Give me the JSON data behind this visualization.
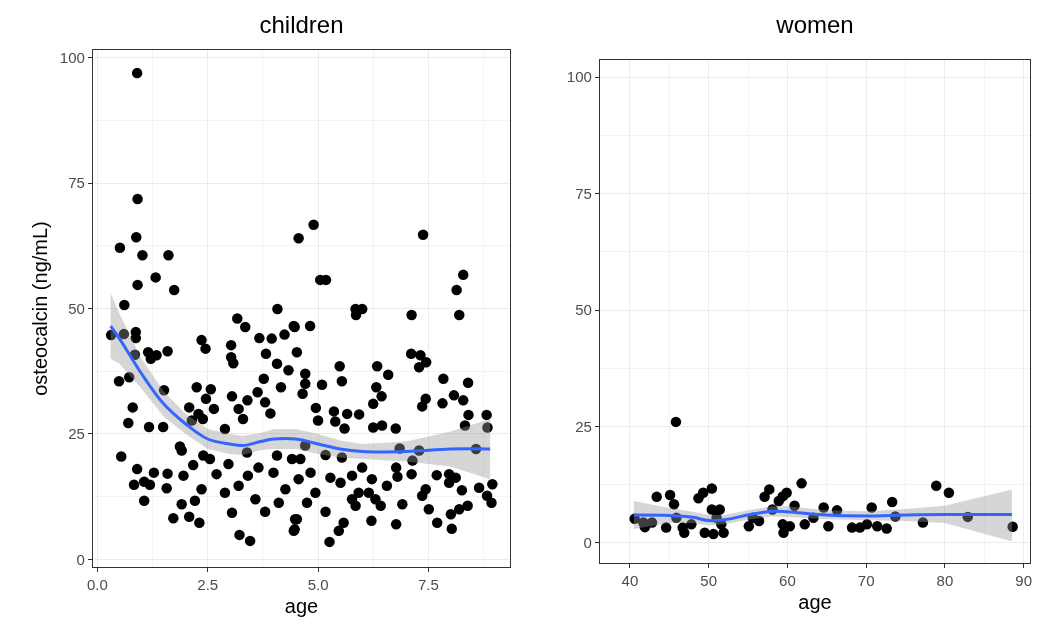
{
  "chart_data": [
    {
      "type": "scatter",
      "title": "children",
      "xlabel": "age",
      "ylabel": "osteocalcin (ng/mL)",
      "grid": true,
      "xlim": [
        -0.1,
        9.35
      ],
      "ylim": [
        -1.5,
        101.5
      ],
      "xticks": [
        {
          "value": 0,
          "label": "0.0"
        },
        2.5,
        {
          "value": 5,
          "label": "5.0"
        },
        7.5
      ],
      "yticks": [
        0,
        25,
        50,
        75,
        100
      ],
      "series": [
        {
          "marker": "circle",
          "color": "#000000",
          "x": [
            0.9,
            0.91,
            0.88,
            0.51,
            1.02,
            1.61,
            1.32,
            0.91,
            1.74,
            0.61,
            0.31,
            0.6,
            0.87,
            0.87,
            0.85,
            1.15,
            1.21,
            1.34,
            1.59,
            0.49,
            0.72,
            1.51,
            0.8,
            0.7,
            1.17,
            1.49,
            0.54,
            0.9,
            0.83,
            1.06,
            1.28,
            1.19,
            1.59,
            1.57,
            1.06,
            1.87,
            2.08,
            2.25,
            2.57,
            2.46,
            2.64,
            2.36,
            2.45,
            3.03,
            3.03,
            3.08,
            3.17,
            3.35,
            3.67,
            3.95,
            4.24,
            4.08,
            4.45,
            3.82,
            4.07,
            4.33,
            3.77,
            4.16,
            3.63,
            3.05,
            3.4,
            3.2,
            3.8,
            3.92,
            3.3,
            2.14,
            2.29,
            2.39,
            2.89,
            1.91,
            2.17,
            2.4,
            2.55,
            2.97,
            1.95,
            2.36,
            2.7,
            2.89,
            3.2,
            3.41,
            3.65,
            3.99,
            1.72,
            1.91,
            2.08,
            2.31,
            2.21,
            3.05,
            3.22,
            3.46,
            3.58,
            3.8,
            4.11,
            4.45,
            4.52,
            3.39,
            4.07,
            4.41,
            4.26,
            4.56,
            4.9,
            5.05,
            5.18,
            7.38,
            8.29,
            8.14,
            8.2,
            5.85,
            6.0,
            5.86,
            7.12,
            4.47,
            4.82,
            4.52,
            7.11,
            7.32,
            7.45,
            7.29,
            4.71,
            4.71,
            4.65,
            5.09,
            5.49,
            5.54,
            6.34,
            6.59,
            6.32,
            6.44,
            6.25,
            7.84,
            8.4,
            8.08,
            7.82,
            8.29,
            7.44,
            7.36,
            4.95,
            5.0,
            5.36,
            5.39,
            5.66,
            5.6,
            5.93,
            6.25,
            6.45,
            6.76,
            8.41,
            8.33,
            8.82,
            8.84,
            8.58,
            7.29,
            6.85,
            5.17,
            7.14,
            6.77,
            6.8,
            7.12,
            7.69,
            7.97,
            8.12,
            7.97,
            8.65,
            8.95,
            8.26,
            7.44,
            7.36,
            6.91,
            7.51,
            8.39,
            8.2,
            8.83,
            8.93,
            8.01,
            7.7,
            8.03,
            6.77,
            6.21,
            6.42,
            5.85,
            5.58,
            5.47,
            5.26,
            5.17,
            4.94,
            4.75,
            4.48,
            4.47,
            4.83,
            5.28,
            5.51,
            5.77,
            6.0,
            6.22,
            6.56,
            5.92,
            6.15,
            5.77,
            6.3,
            4.6,
            4.56,
            4.71,
            5.54
          ],
          "values": [
            96.9,
            71.8,
            64.2,
            62.1,
            60.6,
            60.6,
            56.2,
            54.7,
            53.7,
            50.7,
            44.7,
            44.9,
            45.3,
            44.1,
            40.8,
            41.3,
            40,
            40.7,
            41.5,
            35.5,
            36.3,
            33.7,
            30.3,
            27.2,
            26.4,
            26.4,
            20.5,
            18,
            14.9,
            15.5,
            17.3,
            14.9,
            17.1,
            14.2,
            11.7,
            22.5,
            30.3,
            34.3,
            33.9,
            32,
            30,
            43.7,
            42,
            42.7,
            40.3,
            39.1,
            48,
            46.3,
            44.1,
            44,
            44.8,
            49.9,
            46.5,
            41,
            39,
            37.7,
            36,
            34.3,
            33.3,
            32.5,
            31.7,
            30,
            31.3,
            29.1,
            28,
            27.7,
            29,
            28,
            26,
            21.7,
            18.8,
            20.7,
            20,
            19,
            16.7,
            14,
            17,
            13.3,
            14.7,
            16.7,
            18.3,
            17.3,
            8.2,
            11,
            8.5,
            7.3,
            11.7,
            9.3,
            4.9,
            3.7,
            12,
            9.5,
            11.3,
            5.7,
            8,
            21.3,
            20.7,
            20,
            14,
            64,
            66.7,
            55.7,
            55.7,
            64.7,
            56.7,
            53.7,
            48.7,
            49.9,
            49.9,
            48.7,
            48.7,
            46.3,
            46.5,
            41.3,
            41,
            40.7,
            39.3,
            38.3,
            37,
            35,
            33,
            34.8,
            38.5,
            35.5,
            38.5,
            36.8,
            34.3,
            32.5,
            31,
            36,
            35.2,
            32.7,
            31.1,
            31.7,
            32,
            30.5,
            30.2,
            27.7,
            29.5,
            27.5,
            29,
            26.1,
            28.9,
            26.3,
            26.7,
            26.1,
            28.8,
            26.7,
            28.8,
            26.3,
            22,
            21.7,
            22.1,
            20.8,
            19.7,
            18.3,
            16.5,
            17,
            16.8,
            17,
            16.3,
            15.3,
            14.3,
            15,
            13.8,
            14,
            12.7,
            11,
            10,
            10.7,
            10,
            12.7,
            11.3,
            9,
            7.3,
            6.1,
            7,
            7.7,
            10.7,
            10.7,
            7.3,
            5.7,
            3.5,
            9.5,
            13.3,
            11.3,
            8,
            6,
            17.3,
            16.3,
            15.3,
            16.7,
            18.3,
            16,
            14.7,
            13.3,
            13.3,
            12,
            12,
            20,
            16,
            22.7,
            20.3
          ]
        },
        {
          "type": "line",
          "color": "#3366ff",
          "x": [
            0.3,
            0.5,
            1,
            1.5,
            2,
            2.5,
            3,
            3.3,
            3.7,
            4,
            4.5,
            5,
            5.5,
            6,
            7,
            8,
            8.9
          ],
          "values": [
            46.5,
            44,
            37,
            31,
            27,
            24,
            23,
            22.7,
            23.5,
            24,
            24,
            23,
            22,
            21.5,
            21.5,
            22,
            22
          ],
          "lower": [
            40,
            39,
            34,
            28.5,
            25,
            22,
            21,
            20.8,
            21.8,
            22,
            22,
            21,
            20.3,
            20,
            19.5,
            18.5,
            16
          ],
          "upper": [
            53,
            49,
            40,
            33.5,
            29,
            26,
            25,
            24.6,
            25.2,
            26,
            26,
            25,
            23.7,
            23,
            23.5,
            25.5,
            28
          ]
        }
      ]
    },
    {
      "type": "scatter",
      "title": "women",
      "xlabel": "age",
      "grid": true,
      "xlim": [
        36.2,
        90.8
      ],
      "ylim": [
        -4.3,
        103.7
      ],
      "xticks": [
        40,
        50,
        60,
        70,
        80,
        90
      ],
      "yticks": [
        0,
        25,
        50,
        75,
        100
      ],
      "series": [
        {
          "marker": "circle",
          "color": "#000000",
          "x": [
            45.84,
            40.6,
            41.7,
            41.9,
            42.8,
            43.4,
            44.6,
            45.1,
            45.6,
            45.9,
            46.7,
            46.9,
            47.8,
            48.7,
            49.3,
            50.4,
            50.4,
            49.5,
            50.6,
            51.4,
            51.6,
            51.9,
            51.0,
            55.1,
            55.6,
            56.4,
            57.1,
            57.7,
            58.1,
            58.9,
            59.4,
            59.9,
            59.4,
            59.5,
            60.3,
            60.9,
            61.8,
            62.2,
            63.3,
            64.6,
            65.2,
            66.3,
            68.2,
            69.2,
            70.1,
            70.7,
            71.4,
            72.6,
            73.3,
            73.7,
            77.2,
            78.9,
            80.5,
            82.9,
            88.6
          ],
          "values": [
            26,
            5.2,
            4.4,
            3.4,
            4.4,
            9.9,
            3.3,
            10.3,
            8.3,
            5.4,
            3.3,
            2.2,
            4,
            9.6,
            10.8,
            11.7,
            7.2,
            2.2,
            1.9,
            7.2,
            4,
            2.2,
            5.4,
            3.6,
            5.4,
            4.7,
            9.9,
            11.5,
            7.2,
            9,
            10,
            10.8,
            4,
            2.2,
            3.6,
            8,
            12.8,
            4,
            5.4,
            7.6,
            3.6,
            7,
            3.3,
            3.3,
            4,
            7.6,
            3.6,
            3.1,
            8.8,
            5.7,
            4.4,
            12.3,
            10.8,
            5.6,
            3.5
          ]
        },
        {
          "type": "line",
          "color": "#3366ff",
          "x": [
            40.5,
            45,
            48,
            50,
            52,
            55,
            58,
            60,
            65,
            70,
            75,
            80,
            88.5
          ],
          "values": [
            6,
            5.9,
            5.5,
            4.8,
            5,
            6,
            6.8,
            6.7,
            6,
            5.8,
            6,
            6.1,
            6.1
          ],
          "lower": [
            3,
            4.3,
            4.3,
            3.8,
            4,
            5,
            5.7,
            5.6,
            5.1,
            4.9,
            4.7,
            4.3,
            0.3
          ],
          "upper": [
            9,
            7.5,
            6.7,
            6,
            6,
            7,
            7.9,
            7.9,
            7,
            6.8,
            7.3,
            8,
            11.5
          ]
        }
      ]
    }
  ]
}
